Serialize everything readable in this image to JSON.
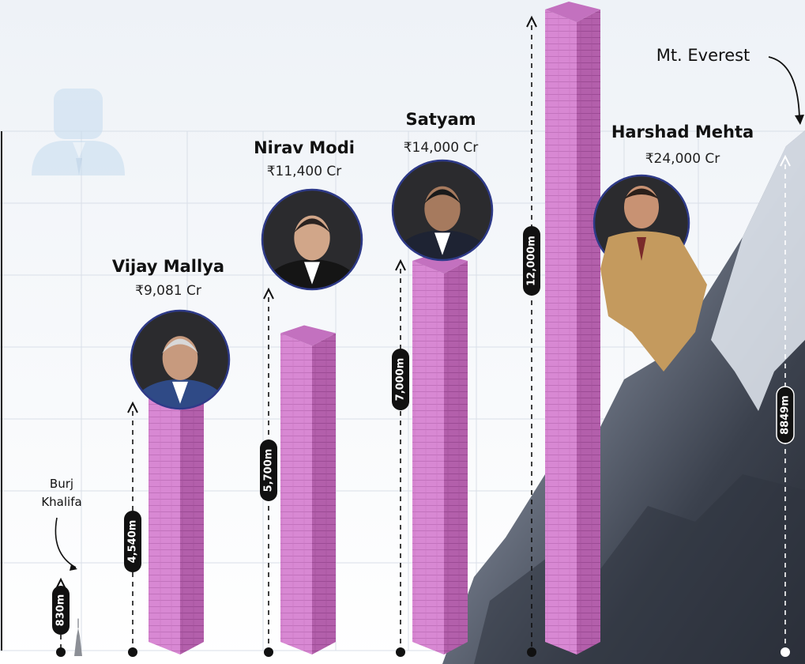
{
  "chart_data": {
    "type": "bar",
    "unit": "m",
    "categories": [
      "Burj Khalifa",
      "Vijay Mallya",
      "Nirav Modi",
      "Satyam",
      "",
      "Harshad Mehta"
    ],
    "values": [
      830,
      4540,
      5700,
      7000,
      12000,
      8849
    ],
    "value_labels": [
      "830m",
      "4,540m",
      "5,700m",
      "7,000m",
      "12,000m",
      "8849m"
    ],
    "amounts": [
      "",
      "₹9,081 Cr",
      "₹11,400 Cr",
      "₹14,000 Cr",
      "",
      "₹24,000 Cr"
    ],
    "landmarks": {
      "burj_line1": "Burj",
      "burj_line2": "Khalifa",
      "everest": "Mt. Everest"
    },
    "grid": true,
    "legend": "none",
    "colors": {
      "bar_light": "#d887d2",
      "bar_dark": "#b15ca8",
      "bar_top": "#c371bf",
      "grid": "#d9dfe8",
      "background_top": "#eef2f7",
      "mountain_dark": "#2f3440",
      "mountain_mid": "#5e6574",
      "snow": "#dfe6ef",
      "pill": "#111111",
      "portrait_ring": "#2e3a88"
    }
  }
}
